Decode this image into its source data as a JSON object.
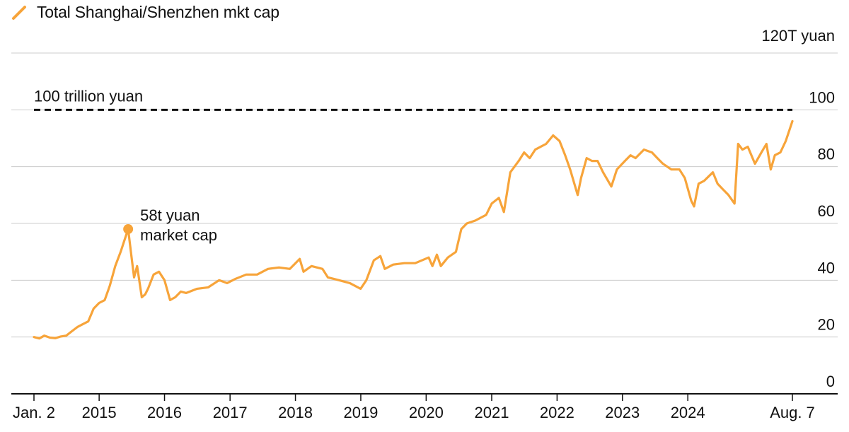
{
  "chart_data": {
    "type": "line",
    "legend": {
      "entries": [
        "Total Shanghai/Shenzhen mkt cap"
      ],
      "placement": "top-left"
    },
    "ylabel": "120T yuan",
    "y_tick_labels": [
      "0",
      "20",
      "40",
      "60",
      "80",
      "100"
    ],
    "ylim": [
      0,
      120
    ],
    "grid": true,
    "x_tick_labels": [
      "Jan. 2",
      "2015",
      "2016",
      "2017",
      "2018",
      "2019",
      "2020",
      "2021",
      "2022",
      "2023",
      "2024",
      "Aug. 7"
    ],
    "x_tick_dates": [
      "2014-01-02",
      "2015-01-01",
      "2016-01-01",
      "2017-01-01",
      "2018-01-01",
      "2019-01-01",
      "2020-01-01",
      "2021-01-01",
      "2022-01-01",
      "2023-01-01",
      "2024-01-01",
      "2025-08-07"
    ],
    "xlim": [
      "2014-01-02",
      "2025-08-07"
    ],
    "reference_line": {
      "value": 100,
      "label": "100 trillion yuan"
    },
    "annotation": {
      "date": "2015-06-12",
      "value": 58,
      "lines": [
        "58t yuan",
        "market cap"
      ]
    },
    "series": [
      {
        "color": "#f7a43a",
        "points": [
          [
            "2014-01-02",
            20
          ],
          [
            "2014-02-01",
            19.5
          ],
          [
            "2014-03-01",
            20.5
          ],
          [
            "2014-04-01",
            19.8
          ],
          [
            "2014-05-01",
            19.6
          ],
          [
            "2014-06-01",
            20.2
          ],
          [
            "2014-07-01",
            20.5
          ],
          [
            "2014-08-01",
            22
          ],
          [
            "2014-09-01",
            23.5
          ],
          [
            "2014-10-01",
            24.5
          ],
          [
            "2014-11-01",
            25.5
          ],
          [
            "2014-12-01",
            30
          ],
          [
            "2015-01-01",
            32
          ],
          [
            "2015-02-01",
            33
          ],
          [
            "2015-03-01",
            38
          ],
          [
            "2015-04-01",
            45
          ],
          [
            "2015-05-01",
            50
          ],
          [
            "2015-06-12",
            58
          ],
          [
            "2015-07-01",
            48
          ],
          [
            "2015-07-15",
            41
          ],
          [
            "2015-08-01",
            45
          ],
          [
            "2015-08-27",
            34
          ],
          [
            "2015-09-15",
            35
          ],
          [
            "2015-10-01",
            37
          ],
          [
            "2015-11-01",
            42
          ],
          [
            "2015-12-01",
            43
          ],
          [
            "2016-01-01",
            40
          ],
          [
            "2016-02-01",
            33
          ],
          [
            "2016-03-01",
            34
          ],
          [
            "2016-04-01",
            36
          ],
          [
            "2016-05-01",
            35.5
          ],
          [
            "2016-07-01",
            37
          ],
          [
            "2016-09-01",
            37.5
          ],
          [
            "2016-11-01",
            40
          ],
          [
            "2016-12-15",
            39
          ],
          [
            "2017-02-01",
            40.5
          ],
          [
            "2017-04-01",
            42
          ],
          [
            "2017-06-01",
            42
          ],
          [
            "2017-08-01",
            44
          ],
          [
            "2017-10-01",
            44.5
          ],
          [
            "2017-12-01",
            44
          ],
          [
            "2018-01-25",
            47.5
          ],
          [
            "2018-02-15",
            43
          ],
          [
            "2018-04-01",
            45
          ],
          [
            "2018-06-01",
            44
          ],
          [
            "2018-07-01",
            41
          ],
          [
            "2018-09-01",
            40
          ],
          [
            "2018-11-01",
            39
          ],
          [
            "2018-12-31",
            37
          ],
          [
            "2019-02-01",
            40
          ],
          [
            "2019-03-15",
            47
          ],
          [
            "2019-04-20",
            48.5
          ],
          [
            "2019-05-15",
            44
          ],
          [
            "2019-07-01",
            45.5
          ],
          [
            "2019-09-01",
            46
          ],
          [
            "2019-11-01",
            46
          ],
          [
            "2020-01-15",
            48
          ],
          [
            "2020-02-05",
            45
          ],
          [
            "2020-03-01",
            49
          ],
          [
            "2020-03-23",
            45
          ],
          [
            "2020-05-01",
            48
          ],
          [
            "2020-06-15",
            50
          ],
          [
            "2020-07-15",
            58
          ],
          [
            "2020-08-15",
            60
          ],
          [
            "2020-10-01",
            61
          ],
          [
            "2020-12-01",
            63
          ],
          [
            "2021-01-01",
            67
          ],
          [
            "2021-02-10",
            69
          ],
          [
            "2021-03-10",
            64
          ],
          [
            "2021-04-15",
            78
          ],
          [
            "2021-06-01",
            82
          ],
          [
            "2021-07-01",
            85
          ],
          [
            "2021-08-01",
            83
          ],
          [
            "2021-09-01",
            86
          ],
          [
            "2021-10-01",
            87
          ],
          [
            "2021-11-01",
            88
          ],
          [
            "2021-12-10",
            91
          ],
          [
            "2022-01-15",
            89
          ],
          [
            "2022-02-15",
            84
          ],
          [
            "2022-03-15",
            79
          ],
          [
            "2022-04-26",
            70
          ],
          [
            "2022-05-15",
            76
          ],
          [
            "2022-06-15",
            83
          ],
          [
            "2022-07-15",
            82
          ],
          [
            "2022-08-15",
            82
          ],
          [
            "2022-09-15",
            78
          ],
          [
            "2022-10-31",
            73
          ],
          [
            "2022-12-01",
            79
          ],
          [
            "2023-01-15",
            82
          ],
          [
            "2023-02-15",
            84
          ],
          [
            "2023-03-15",
            83
          ],
          [
            "2023-05-01",
            86
          ],
          [
            "2023-06-15",
            85
          ],
          [
            "2023-07-15",
            83
          ],
          [
            "2023-08-15",
            81
          ],
          [
            "2023-10-01",
            79
          ],
          [
            "2023-11-15",
            79
          ],
          [
            "2023-12-15",
            76
          ],
          [
            "2024-01-20",
            68
          ],
          [
            "2024-02-05",
            66
          ],
          [
            "2024-03-01",
            74
          ],
          [
            "2024-04-01",
            75
          ],
          [
            "2024-05-20",
            78
          ],
          [
            "2024-06-15",
            74
          ],
          [
            "2024-07-15",
            72
          ],
          [
            "2024-08-15",
            70
          ],
          [
            "2024-09-18",
            67
          ],
          [
            "2024-10-08",
            88
          ],
          [
            "2024-11-01",
            86
          ],
          [
            "2024-12-01",
            87
          ],
          [
            "2025-01-10",
            81
          ],
          [
            "2025-02-15",
            85
          ],
          [
            "2025-03-15",
            88
          ],
          [
            "2025-04-08",
            79
          ],
          [
            "2025-05-01",
            84
          ],
          [
            "2025-06-01",
            85
          ],
          [
            "2025-07-01",
            89
          ],
          [
            "2025-08-07",
            96
          ]
        ]
      }
    ]
  },
  "colors": {
    "line": "#f7a43a",
    "grid": "#cccccc",
    "axis": "#111111",
    "reference": "#111111"
  }
}
